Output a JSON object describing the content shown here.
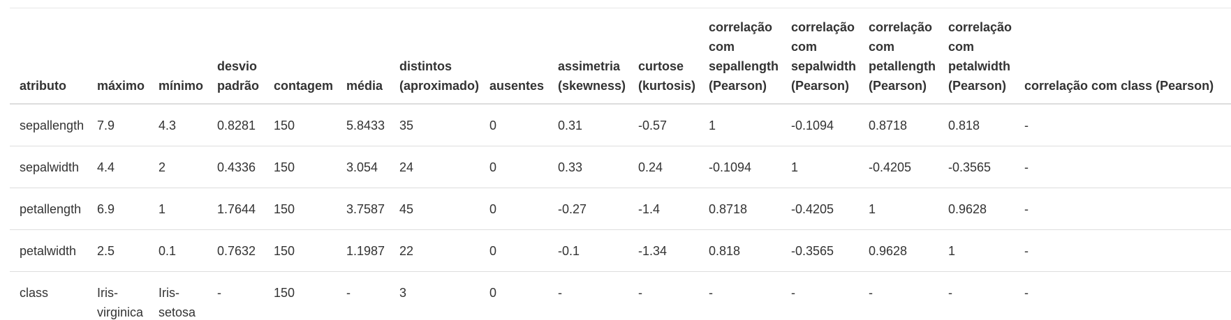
{
  "table": {
    "headers": [
      "atributo",
      "máximo",
      "mínimo",
      "desvio padrão",
      "contagem",
      "média",
      "distintos (aproximado)",
      "ausentes",
      "assimetria (skewness)",
      "curtose (kurtosis)",
      "correlação com sepallength (Pearson)",
      "correlação com sepalwidth (Pearson)",
      "correlação com petallength (Pearson)",
      "correlação com petalwidth (Pearson)",
      "correlação com class (Pearson)"
    ],
    "rows": [
      [
        "sepallength",
        "7.9",
        "4.3",
        "0.8281",
        "150",
        "5.8433",
        "35",
        "0",
        "0.31",
        "-0.57",
        "1",
        "-0.1094",
        "0.8718",
        "0.818",
        "-"
      ],
      [
        "sepalwidth",
        "4.4",
        "2",
        "0.4336",
        "150",
        "3.054",
        "24",
        "0",
        "0.33",
        "0.24",
        "-0.1094",
        "1",
        "-0.4205",
        "-0.3565",
        "-"
      ],
      [
        "petallength",
        "6.9",
        "1",
        "1.7644",
        "150",
        "3.7587",
        "45",
        "0",
        "-0.27",
        "-1.4",
        "0.8718",
        "-0.4205",
        "1",
        "0.9628",
        "-"
      ],
      [
        "petalwidth",
        "2.5",
        "0.1",
        "0.7632",
        "150",
        "1.1987",
        "22",
        "0",
        "-0.1",
        "-1.34",
        "0.818",
        "-0.3565",
        "0.9628",
        "1",
        "-"
      ],
      [
        "class",
        "Iris-virginica",
        "Iris-setosa",
        "-",
        "150",
        "-",
        "3",
        "0",
        "-",
        "-",
        "-",
        "-",
        "-",
        "-",
        "-"
      ]
    ]
  }
}
